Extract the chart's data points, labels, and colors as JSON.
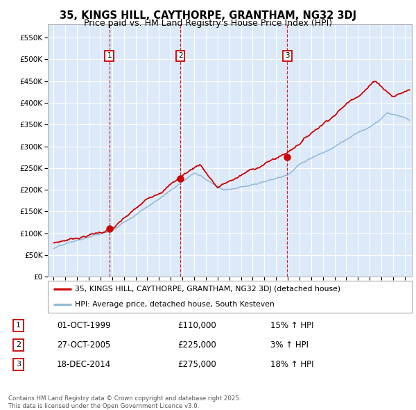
{
  "title": "35, KINGS HILL, CAYTHORPE, GRANTHAM, NG32 3DJ",
  "subtitle": "Price paid vs. HM Land Registry's House Price Index (HPI)",
  "legend_line1": "35, KINGS HILL, CAYTHORPE, GRANTHAM, NG32 3DJ (detached house)",
  "legend_line2": "HPI: Average price, detached house, South Kesteven",
  "footer": "Contains HM Land Registry data © Crown copyright and database right 2025.\nThis data is licensed under the Open Government Licence v3.0.",
  "sale_markers": [
    {
      "num": 1,
      "date": "01-OCT-1999",
      "price": 110000,
      "pct": "15%",
      "dir": "↑",
      "x_year": 1999.75
    },
    {
      "num": 2,
      "date": "27-OCT-2005",
      "price": 225000,
      "pct": "3%",
      "dir": "↑",
      "x_year": 2005.83
    },
    {
      "num": 3,
      "date": "18-DEC-2014",
      "price": 275000,
      "pct": "18%",
      "dir": "↑",
      "x_year": 2014.96
    }
  ],
  "background_color": "#dce9f8",
  "outer_bg_color": "#ffffff",
  "red_line_color": "#cc0000",
  "blue_line_color": "#92b8d8",
  "marker_box_color": "#cc0000",
  "grid_color": "#ffffff",
  "ylim": [
    0,
    580000
  ],
  "yticks": [
    0,
    50000,
    100000,
    150000,
    200000,
    250000,
    300000,
    350000,
    400000,
    450000,
    500000,
    550000
  ],
  "xlim_start": 1994.5,
  "xlim_end": 2025.6
}
